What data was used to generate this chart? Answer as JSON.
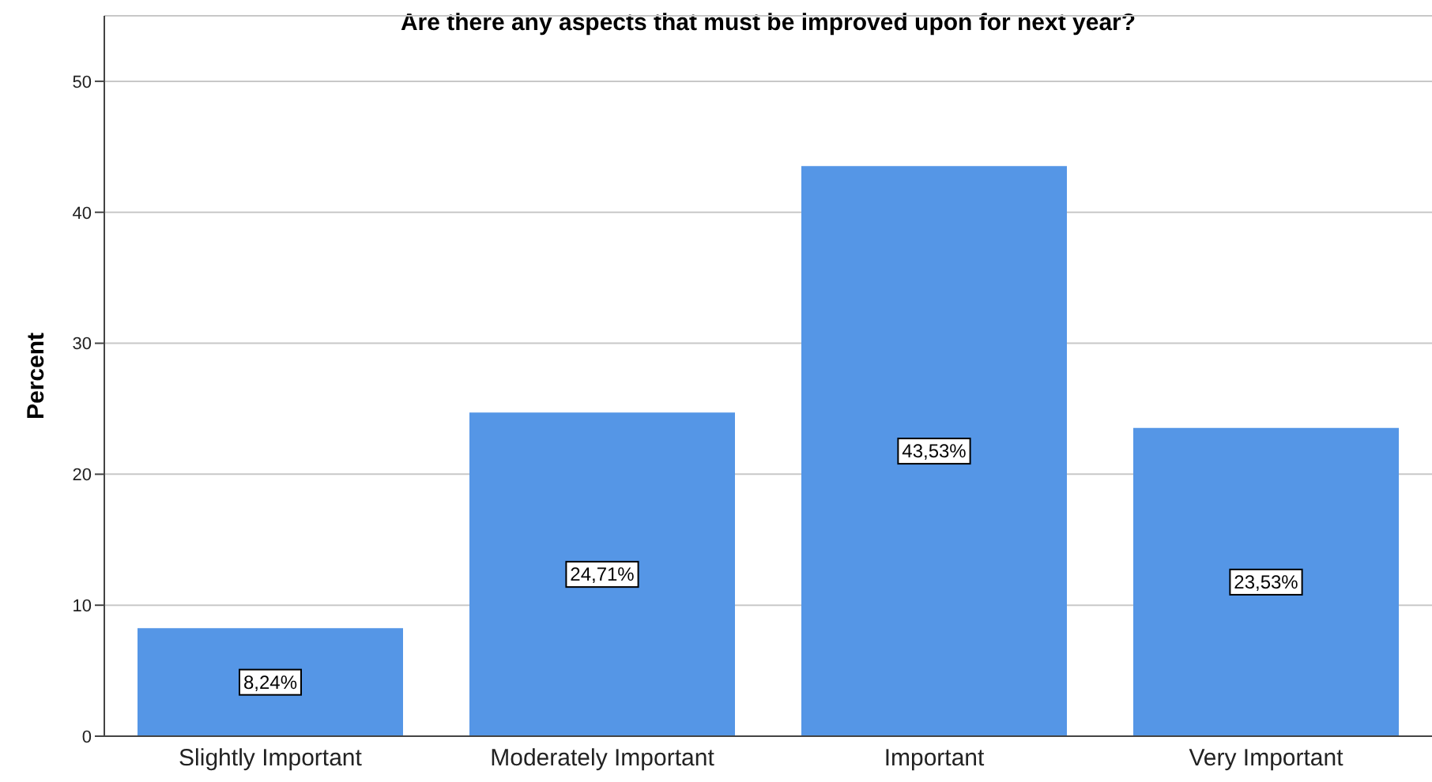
{
  "chart_data": {
    "type": "bar",
    "title": "Are there any aspects that must be improved upon for next year?",
    "ylabel": "Percent",
    "categories": [
      "Slightly Important",
      "Moderately Important",
      "Important",
      "Very Important"
    ],
    "values": [
      8.24,
      24.71,
      43.53,
      23.53
    ],
    "value_labels": [
      "8,24%",
      "24,71%",
      "43,53%",
      "23,53%"
    ],
    "color": "#5596e6",
    "ylim": [
      0,
      55
    ],
    "yticks": [
      0,
      10,
      20,
      30,
      40,
      50
    ],
    "grid": "y"
  }
}
